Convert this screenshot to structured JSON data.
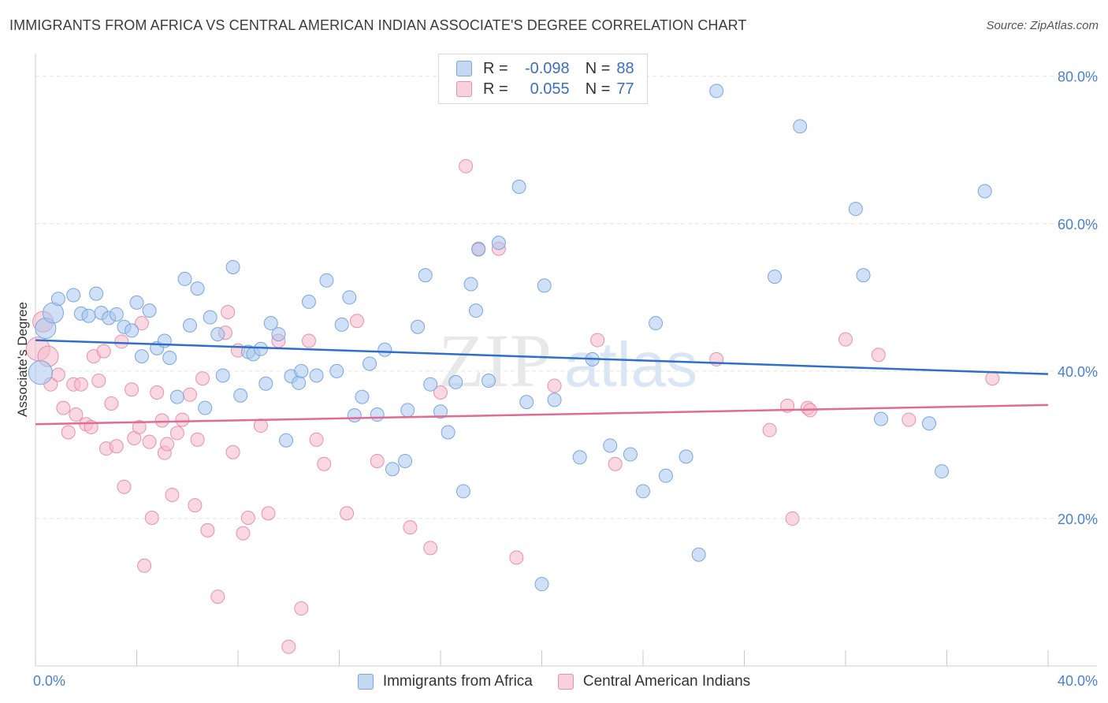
{
  "title": "IMMIGRANTS FROM AFRICA VS CENTRAL AMERICAN INDIAN ASSOCIATE'S DEGREE CORRELATION CHART",
  "source": "Source: ZipAtlas.com",
  "watermark": {
    "zip": "ZIP",
    "atlas": "atlas"
  },
  "colors": {
    "blue_fill": "#a9c6ee",
    "blue_stroke": "#7aa6de",
    "blue_line": "#2e6fcc",
    "pink_fill": "#f5b8cb",
    "pink_stroke": "#e98fad",
    "pink_line": "#e06b94",
    "grid": "#e3e3e3"
  },
  "legend_top": {
    "rows": [
      {
        "r_label": "R =",
        "r_value": "-0.098",
        "n_label": "N =",
        "n_value": "88"
      },
      {
        "r_label": "R =",
        "r_value": "0.055",
        "n_label": "N =",
        "n_value": "77"
      }
    ]
  },
  "legend_bottom": [
    "Immigrants from Africa",
    "Central American Indians"
  ],
  "chart_data": {
    "type": "scatter",
    "xlabel": "",
    "ylabel": "Associate's Degree",
    "xlim": [
      0,
      40
    ],
    "ylim": [
      0,
      82
    ],
    "x_tick_labels": [
      "0.0%",
      "40.0%"
    ],
    "y_ticks": [
      20,
      40,
      60,
      80
    ],
    "y_tick_labels": [
      "20.0%",
      "40.0%",
      "60.0%",
      "80.0%"
    ],
    "grid": true,
    "series": [
      {
        "name": "Immigrants from Africa",
        "trend": {
          "x": [
            0,
            40
          ],
          "y": [
            44.2,
            39.6
          ]
        },
        "points": [
          [
            0.2,
            39.8
          ],
          [
            0.4,
            45.8
          ],
          [
            0.7,
            47.9
          ],
          [
            0.9,
            49.8
          ],
          [
            1.5,
            50.3
          ],
          [
            1.8,
            47.8
          ],
          [
            2.1,
            47.5
          ],
          [
            2.4,
            50.5
          ],
          [
            2.6,
            47.9
          ],
          [
            2.9,
            47.2
          ],
          [
            3.2,
            47.7
          ],
          [
            3.5,
            46.0
          ],
          [
            3.8,
            45.5
          ],
          [
            4.0,
            49.3
          ],
          [
            4.2,
            42.0
          ],
          [
            4.5,
            48.2
          ],
          [
            4.8,
            43.1
          ],
          [
            5.1,
            44.1
          ],
          [
            5.3,
            41.8
          ],
          [
            5.6,
            36.5
          ],
          [
            5.9,
            52.5
          ],
          [
            6.1,
            46.2
          ],
          [
            6.4,
            51.2
          ],
          [
            6.7,
            35.0
          ],
          [
            6.9,
            47.3
          ],
          [
            7.2,
            45.0
          ],
          [
            7.4,
            39.4
          ],
          [
            7.8,
            54.1
          ],
          [
            8.1,
            36.7
          ],
          [
            8.4,
            42.6
          ],
          [
            8.6,
            42.3
          ],
          [
            8.9,
            43.0
          ],
          [
            9.1,
            38.3
          ],
          [
            9.3,
            46.5
          ],
          [
            9.6,
            45.0
          ],
          [
            9.9,
            30.6
          ],
          [
            10.1,
            39.3
          ],
          [
            10.4,
            38.4
          ],
          [
            10.5,
            40.0
          ],
          [
            10.8,
            49.4
          ],
          [
            11.1,
            39.4
          ],
          [
            11.5,
            52.3
          ],
          [
            11.9,
            40.0
          ],
          [
            12.1,
            46.3
          ],
          [
            12.4,
            50.0
          ],
          [
            12.6,
            34.0
          ],
          [
            12.9,
            36.5
          ],
          [
            13.2,
            41.0
          ],
          [
            13.5,
            34.1
          ],
          [
            13.8,
            42.9
          ],
          [
            14.1,
            26.7
          ],
          [
            14.6,
            27.8
          ],
          [
            14.7,
            34.7
          ],
          [
            15.1,
            46.0
          ],
          [
            15.4,
            53.0
          ],
          [
            15.6,
            38.2
          ],
          [
            16.0,
            34.5
          ],
          [
            16.3,
            31.7
          ],
          [
            16.6,
            38.5
          ],
          [
            16.9,
            23.7
          ],
          [
            17.2,
            51.8
          ],
          [
            17.4,
            48.2
          ],
          [
            17.5,
            56.5
          ],
          [
            17.9,
            38.7
          ],
          [
            18.3,
            57.4
          ],
          [
            19.1,
            65.0
          ],
          [
            19.4,
            35.8
          ],
          [
            20.1,
            51.6
          ],
          [
            20.5,
            36.1
          ],
          [
            21.5,
            28.3
          ],
          [
            22.7,
            29.9
          ],
          [
            23.5,
            28.7
          ],
          [
            24.0,
            23.7
          ],
          [
            24.5,
            46.5
          ],
          [
            24.9,
            25.8
          ],
          [
            25.7,
            28.4
          ],
          [
            26.2,
            15.1
          ],
          [
            26.9,
            78.0
          ],
          [
            29.2,
            52.8
          ],
          [
            30.2,
            73.2
          ],
          [
            32.4,
            62.0
          ],
          [
            32.7,
            53.0
          ],
          [
            33.4,
            33.5
          ],
          [
            35.3,
            32.9
          ],
          [
            35.8,
            26.4
          ],
          [
            37.5,
            64.4
          ],
          [
            20.0,
            11.1
          ],
          [
            22.0,
            41.6
          ]
        ]
      },
      {
        "name": "Central American Indians",
        "trend": {
          "x": [
            0,
            40
          ],
          "y": [
            32.8,
            35.4
          ]
        },
        "points": [
          [
            0.1,
            43.0
          ],
          [
            0.3,
            46.7
          ],
          [
            0.5,
            42.0
          ],
          [
            0.6,
            38.2
          ],
          [
            0.9,
            39.5
          ],
          [
            1.1,
            35.0
          ],
          [
            1.3,
            31.7
          ],
          [
            1.5,
            38.2
          ],
          [
            1.6,
            34.1
          ],
          [
            1.8,
            38.2
          ],
          [
            2.0,
            32.8
          ],
          [
            2.2,
            32.4
          ],
          [
            2.3,
            42.0
          ],
          [
            2.5,
            38.7
          ],
          [
            2.7,
            42.7
          ],
          [
            2.8,
            29.5
          ],
          [
            3.0,
            35.6
          ],
          [
            3.2,
            29.8
          ],
          [
            3.4,
            44.0
          ],
          [
            3.5,
            24.3
          ],
          [
            3.8,
            37.5
          ],
          [
            3.9,
            30.9
          ],
          [
            4.1,
            32.4
          ],
          [
            4.2,
            46.5
          ],
          [
            4.3,
            13.6
          ],
          [
            4.5,
            30.4
          ],
          [
            4.6,
            20.1
          ],
          [
            4.8,
            37.1
          ],
          [
            5.0,
            33.3
          ],
          [
            5.1,
            28.9
          ],
          [
            5.2,
            30.1
          ],
          [
            5.4,
            23.2
          ],
          [
            5.6,
            31.6
          ],
          [
            5.8,
            33.4
          ],
          [
            6.1,
            36.8
          ],
          [
            6.3,
            21.8
          ],
          [
            6.4,
            30.7
          ],
          [
            6.6,
            39.0
          ],
          [
            6.8,
            18.4
          ],
          [
            7.2,
            9.4
          ],
          [
            7.5,
            45.2
          ],
          [
            7.6,
            48.0
          ],
          [
            7.8,
            29.0
          ],
          [
            8.0,
            42.8
          ],
          [
            8.2,
            18.0
          ],
          [
            8.4,
            20.1
          ],
          [
            8.9,
            32.6
          ],
          [
            9.2,
            20.7
          ],
          [
            9.6,
            44.1
          ],
          [
            10.0,
            2.6
          ],
          [
            10.5,
            7.8
          ],
          [
            10.8,
            44.1
          ],
          [
            11.1,
            30.7
          ],
          [
            11.4,
            27.4
          ],
          [
            12.3,
            20.7
          ],
          [
            12.7,
            46.8
          ],
          [
            13.5,
            27.8
          ],
          [
            14.8,
            18.8
          ],
          [
            15.6,
            16.0
          ],
          [
            16.0,
            37.1
          ],
          [
            17.0,
            67.8
          ],
          [
            17.5,
            56.6
          ],
          [
            18.3,
            56.6
          ],
          [
            19.0,
            14.7
          ],
          [
            22.2,
            44.2
          ],
          [
            22.9,
            27.4
          ],
          [
            26.9,
            41.6
          ],
          [
            29.0,
            32.0
          ],
          [
            29.7,
            35.3
          ],
          [
            29.9,
            20.0
          ],
          [
            30.5,
            35.0
          ],
          [
            32.0,
            44.3
          ],
          [
            33.3,
            42.2
          ],
          [
            34.5,
            33.4
          ],
          [
            37.8,
            39.0
          ],
          [
            30.6,
            34.7
          ],
          [
            20.5,
            38.0
          ]
        ]
      }
    ]
  }
}
